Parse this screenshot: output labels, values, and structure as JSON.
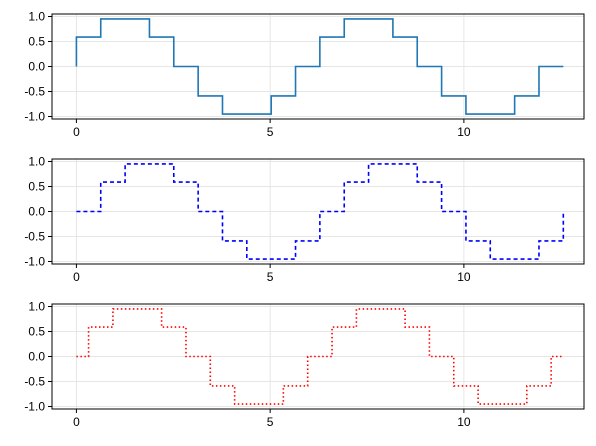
{
  "chart_data": [
    {
      "type": "line",
      "step": "pre",
      "title": "",
      "xlabel": "",
      "ylabel": "",
      "xlim": [
        -0.63,
        13.1
      ],
      "ylim": [
        -1.05,
        1.05
      ],
      "xticks": [
        0,
        5,
        10
      ],
      "xtick_labels": [
        "0",
        "5",
        "10"
      ],
      "yticks": [
        1.0,
        0.5,
        0.0,
        -0.5,
        -1.0
      ],
      "ytick_labels": [
        "1.0",
        "0.5",
        "0.0",
        "-0.5",
        "-1.0"
      ],
      "grid": true,
      "legend": "none",
      "series": [
        {
          "color": "#1f77b4",
          "linestyle": "solid",
          "x": [
            0,
            0.628,
            1.257,
            1.885,
            2.513,
            3.142,
            3.77,
            4.398,
            5.027,
            5.655,
            6.283,
            6.912,
            7.54,
            8.168,
            8.796,
            9.425,
            10.053,
            10.681,
            11.31,
            11.938,
            12.566
          ],
          "y": [
            0,
            0.588,
            0.951,
            0.951,
            0.588,
            0,
            -0.588,
            -0.951,
            -0.951,
            -0.588,
            0,
            0.588,
            0.951,
            0.951,
            0.588,
            0,
            -0.588,
            -0.951,
            -0.951,
            -0.588,
            0
          ]
        }
      ]
    },
    {
      "type": "line",
      "step": "post",
      "title": "",
      "xlabel": "",
      "ylabel": "",
      "xlim": [
        -0.63,
        13.1
      ],
      "ylim": [
        -1.05,
        1.05
      ],
      "xticks": [
        0,
        5,
        10
      ],
      "xtick_labels": [
        "0",
        "5",
        "10"
      ],
      "yticks": [
        1.0,
        0.5,
        0.0,
        -0.5,
        -1.0
      ],
      "ytick_labels": [
        "1.0",
        "0.5",
        "0.0",
        "-0.5",
        "-1.0"
      ],
      "grid": true,
      "legend": "none",
      "series": [
        {
          "color": "#0000ff",
          "linestyle": "dashed",
          "x": [
            0,
            0.628,
            1.257,
            1.885,
            2.513,
            3.142,
            3.77,
            4.398,
            5.027,
            5.655,
            6.283,
            6.912,
            7.54,
            8.168,
            8.796,
            9.425,
            10.053,
            10.681,
            11.31,
            11.938,
            12.566
          ],
          "y": [
            0,
            0.588,
            0.951,
            0.951,
            0.588,
            0,
            -0.588,
            -0.951,
            -0.951,
            -0.588,
            0,
            0.588,
            0.951,
            0.951,
            0.588,
            0,
            -0.588,
            -0.951,
            -0.951,
            -0.588,
            0
          ]
        }
      ]
    },
    {
      "type": "line",
      "step": "mid",
      "title": "",
      "xlabel": "",
      "ylabel": "",
      "xlim": [
        -0.63,
        13.1
      ],
      "ylim": [
        -1.05,
        1.05
      ],
      "xticks": [
        0,
        5,
        10
      ],
      "xtick_labels": [
        "0",
        "5",
        "10"
      ],
      "yticks": [
        1.0,
        0.5,
        0.0,
        -0.5,
        -1.0
      ],
      "ytick_labels": [
        "1.0",
        "0.5",
        "0.0",
        "-0.5",
        "-1.0"
      ],
      "grid": true,
      "legend": "none",
      "series": [
        {
          "color": "#ff0000",
          "linestyle": "dotted",
          "x": [
            0,
            0.628,
            1.257,
            1.885,
            2.513,
            3.142,
            3.77,
            4.398,
            5.027,
            5.655,
            6.283,
            6.912,
            7.54,
            8.168,
            8.796,
            9.425,
            10.053,
            10.681,
            11.31,
            11.938,
            12.566
          ],
          "y": [
            0,
            0.588,
            0.951,
            0.951,
            0.588,
            0,
            -0.588,
            -0.951,
            -0.951,
            -0.588,
            0,
            0.588,
            0.951,
            0.951,
            0.588,
            0,
            -0.588,
            -0.951,
            -0.951,
            -0.588,
            0
          ]
        }
      ]
    }
  ]
}
